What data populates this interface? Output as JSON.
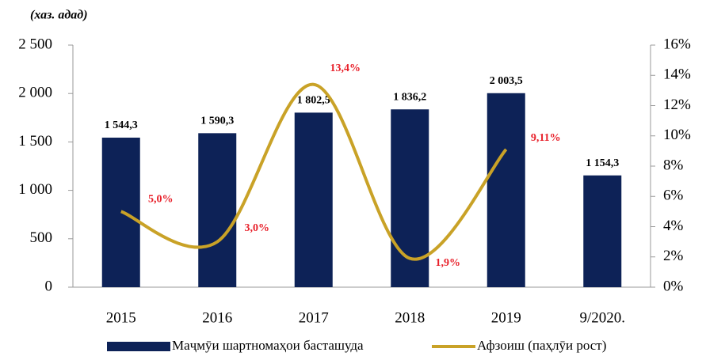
{
  "chart_data": {
    "type": "bar",
    "unit_label": "(хаз. адад)",
    "categories": [
      "2015",
      "2016",
      "2017",
      "2018",
      "2019",
      "9/2020."
    ],
    "series": [
      {
        "name": "Маҷмӯи шартномаҳои басташуда",
        "type": "bar",
        "color": "#0d2257",
        "values": [
          1544.3,
          1590.3,
          1802.5,
          1836.2,
          2003.5,
          1154.3
        ],
        "value_labels": [
          "1 544,3",
          "1 590,3",
          "1 802,5",
          "1 836,2",
          "2 003,5",
          "1 154,3"
        ]
      },
      {
        "name": "Афзоиш (паҳлӯи рост)",
        "type": "line",
        "axis": "y2",
        "color": "#c9a227",
        "values": [
          5.0,
          3.0,
          13.4,
          1.9,
          9.11,
          null
        ],
        "value_labels": [
          "5,0%",
          "3,0%",
          "13,4%",
          "1,9%",
          "9,11%",
          null
        ],
        "label_color": "#e8202a"
      }
    ],
    "ylim": [
      0,
      2500
    ],
    "yticks": [
      0,
      500,
      {
        "value": 1000,
        "label": "1 000"
      },
      {
        "value": 1500,
        "label": "1 500"
      },
      {
        "value": 2000,
        "label": "2 000"
      },
      {
        "value": 2500,
        "label": "2 500"
      }
    ],
    "y2lim": [
      0,
      16
    ],
    "y2ticks": [
      {
        "value": 0,
        "label": "0%"
      },
      {
        "value": 2,
        "label": "2%"
      },
      {
        "value": 4,
        "label": "4%"
      },
      {
        "value": 6,
        "label": "6%"
      },
      {
        "value": 8,
        "label": "8%"
      },
      {
        "value": 10,
        "label": "10%"
      },
      {
        "value": 12,
        "label": "12%"
      },
      {
        "value": 14,
        "label": "14%"
      },
      {
        "value": 16,
        "label": "16%"
      }
    ],
    "grid": false,
    "legend": "bottom"
  }
}
